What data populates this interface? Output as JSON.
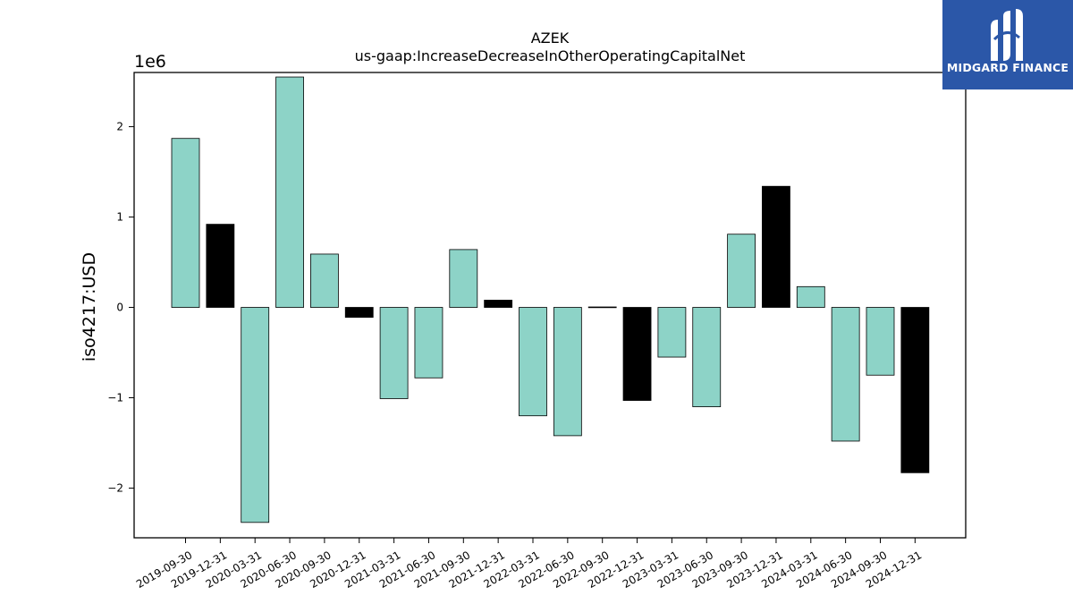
{
  "brand": {
    "name": "MIDGARD FINANCE",
    "bg_color": "#2b57a8",
    "icon": "midgard-logo-icon"
  },
  "chart_data": {
    "type": "bar",
    "title": "AZEK",
    "subtitle": "us-gaap:IncreaseDecreaseInOtherOperatingCapitalNet",
    "ylabel": "iso4217:USD",
    "xlabel": "",
    "y_scale_label": "1e6",
    "ylim": [
      -2.55,
      2.6
    ],
    "yticks": [
      2,
      1,
      0,
      -1,
      -2
    ],
    "ytick_labels": [
      "2",
      "1",
      "0",
      "−1",
      "−2"
    ],
    "grid": false,
    "colors": {
      "quarter": "#8dd3c7",
      "year_end": "#000000",
      "edge": "#000000"
    },
    "categories": [
      "2019-09-30",
      "2019-12-31",
      "2020-03-31",
      "2020-06-30",
      "2020-09-30",
      "2020-12-31",
      "2021-03-31",
      "2021-06-30",
      "2021-09-30",
      "2021-12-31",
      "2022-03-31",
      "2022-06-30",
      "2022-09-30",
      "2022-12-31",
      "2023-03-31",
      "2023-06-30",
      "2023-09-30",
      "2023-12-31",
      "2024-03-31",
      "2024-06-30",
      "2024-09-30",
      "2024-12-31"
    ],
    "values": [
      1.87,
      0.92,
      -2.38,
      2.55,
      0.59,
      -0.11,
      -1.01,
      -0.78,
      0.64,
      0.08,
      -1.2,
      -1.42,
      0.005,
      -1.03,
      -0.55,
      -1.1,
      0.81,
      1.34,
      0.23,
      -1.48,
      -0.75,
      -1.83
    ],
    "year_end_flags": [
      false,
      true,
      false,
      false,
      false,
      true,
      false,
      false,
      false,
      true,
      false,
      false,
      false,
      true,
      false,
      false,
      false,
      true,
      false,
      false,
      false,
      true
    ]
  }
}
